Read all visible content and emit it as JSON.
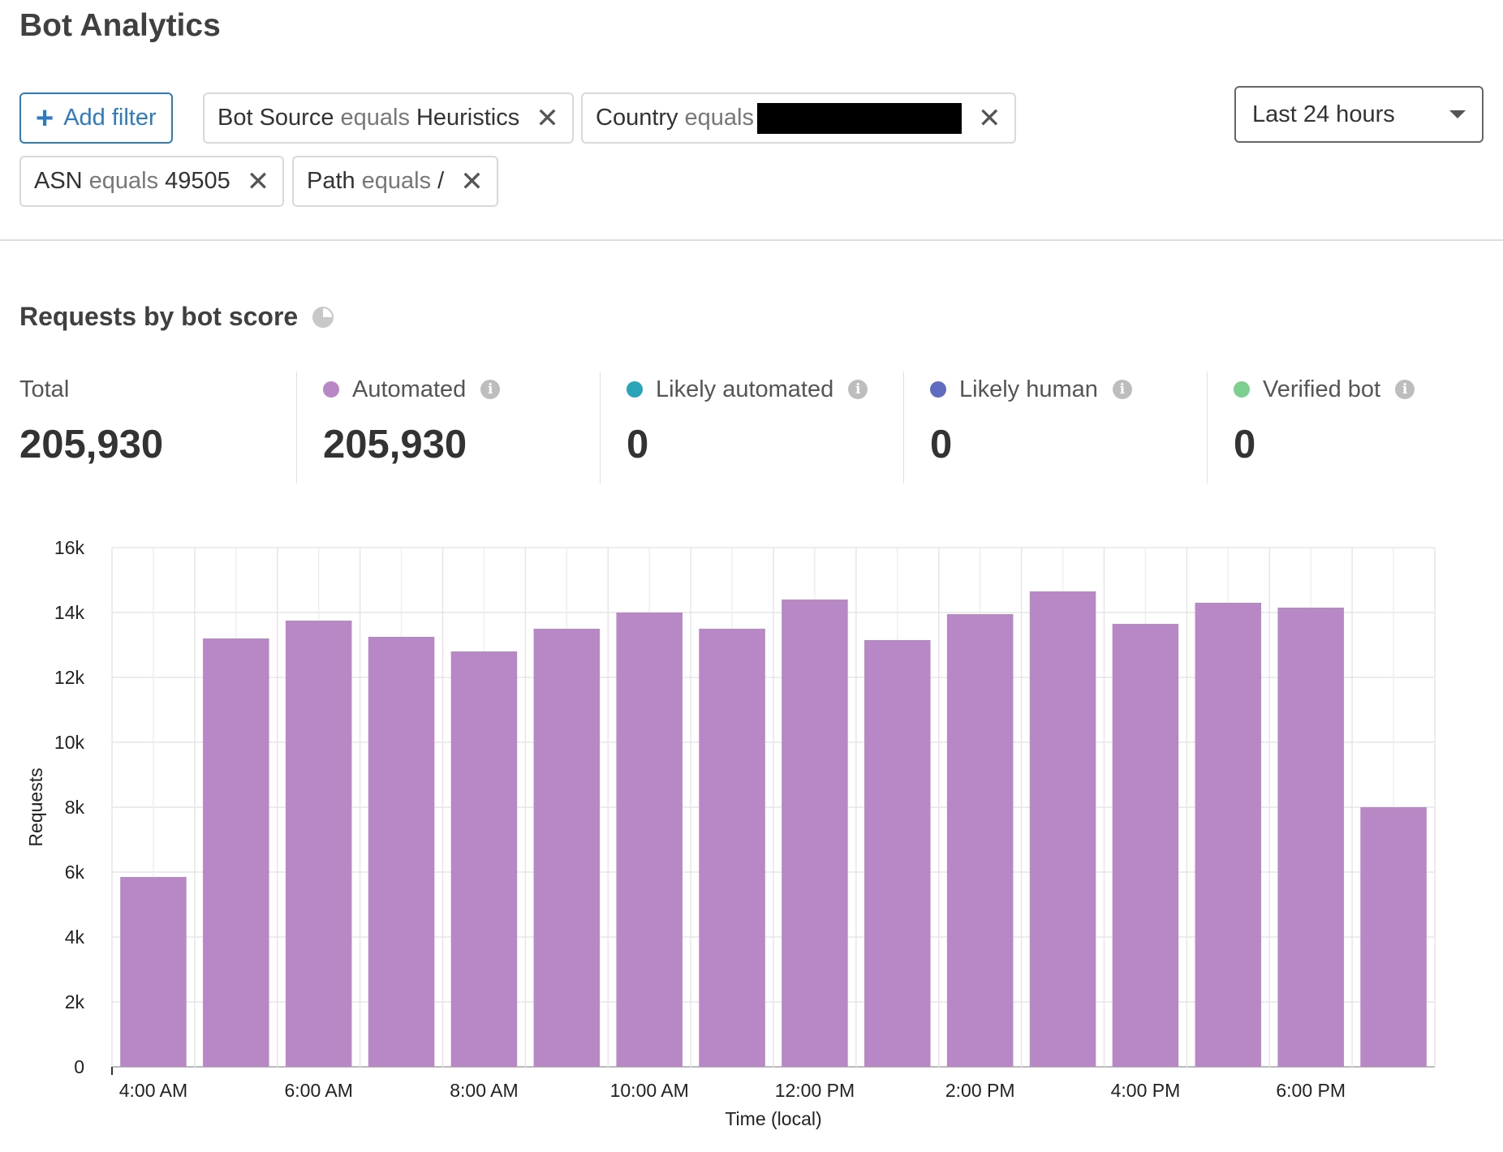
{
  "page_title": "Bot Analytics",
  "filters": {
    "add_filter_label": "Add filter",
    "chips": [
      {
        "field": "Bot Source",
        "op": "equals",
        "value": "Heuristics"
      },
      {
        "field": "Country",
        "op": "equals",
        "value": ""
      },
      {
        "field": "ASN",
        "op": "equals",
        "value": "49505"
      },
      {
        "field": "Path",
        "op": "equals",
        "value": "/"
      }
    ]
  },
  "time_range": {
    "selected": "Last 24 hours"
  },
  "section_title": "Requests by bot score",
  "stats": [
    {
      "label": "Total",
      "value": "205,930"
    },
    {
      "label": "Automated",
      "value": "205,930",
      "color": "#b787c6"
    },
    {
      "label": "Likely automated",
      "value": "0",
      "color": "#2aa4b8"
    },
    {
      "label": "Likely human",
      "value": "0",
      "color": "#5f6cc0"
    },
    {
      "label": "Verified bot",
      "value": "0",
      "color": "#7ccf8e"
    }
  ],
  "chart_data": {
    "type": "bar",
    "xlabel": "Time (local)",
    "ylabel": "Requests",
    "ylim": [
      0,
      16000
    ],
    "y_ticks": [
      "0",
      "2k",
      "4k",
      "6k",
      "8k",
      "10k",
      "12k",
      "14k",
      "16k"
    ],
    "x_tick_labels": [
      "4:00 AM",
      "6:00 AM",
      "8:00 AM",
      "10:00 AM",
      "12:00 PM",
      "2:00 PM",
      "4:00 PM",
      "6:00 PM"
    ],
    "categories": [
      "4:00 AM",
      "5:00 AM",
      "6:00 AM",
      "7:00 AM",
      "8:00 AM",
      "9:00 AM",
      "10:00 AM",
      "11:00 AM",
      "12:00 PM",
      "1:00 PM",
      "2:00 PM",
      "3:00 PM",
      "4:00 PM",
      "5:00 PM",
      "6:00 PM",
      "7:00 PM"
    ],
    "series": [
      {
        "values": [
          5850,
          13200,
          13750,
          13250,
          12800,
          13500,
          14000,
          13500,
          14400,
          13150,
          13950,
          14650,
          13650,
          14300,
          14150,
          8000
        ],
        "color": "#b787c6"
      }
    ],
    "grid": true
  }
}
